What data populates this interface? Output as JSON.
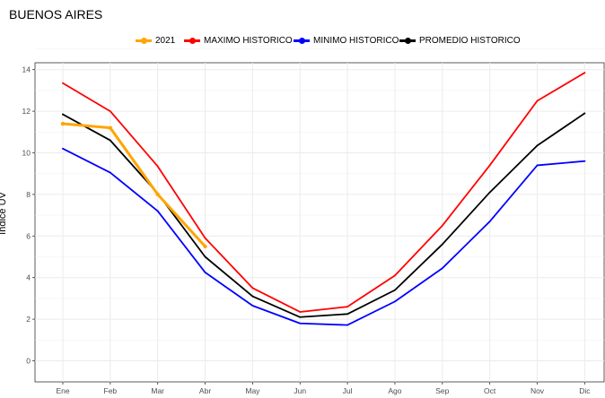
{
  "chart_data": {
    "type": "line",
    "title": "BUENOS AIRES",
    "xlabel": "",
    "ylabel": "Indice UV",
    "categories": [
      "Ene",
      "Feb",
      "Mar",
      "Abr",
      "May",
      "Jun",
      "Jul",
      "Ago",
      "Sep",
      "Oct",
      "Nov",
      "Dic"
    ],
    "ylim": [
      0,
      15
    ],
    "yticks": [
      0,
      2,
      4,
      6,
      8,
      10,
      12,
      14
    ],
    "grid": true,
    "legend_position": "top",
    "series": [
      {
        "name": "2021",
        "color": "#FFA500",
        "values": [
          11.4,
          11.2,
          8.0,
          5.5,
          null,
          null,
          null,
          null,
          null,
          null,
          null,
          null
        ]
      },
      {
        "name": "MAXIMO HISTORICO",
        "color": "#FF0000",
        "values": [
          13.35,
          12.0,
          9.35,
          5.9,
          3.5,
          2.35,
          2.6,
          4.1,
          6.5,
          9.4,
          12.5,
          13.85
        ]
      },
      {
        "name": "MINIMO HISTORICO",
        "color": "#0000FF",
        "values": [
          10.2,
          9.05,
          7.2,
          4.25,
          2.65,
          1.8,
          1.72,
          2.85,
          4.45,
          6.7,
          9.4,
          9.6
        ]
      },
      {
        "name": "PROMEDIO HISTORICO",
        "color": "#000000",
        "values": [
          11.85,
          10.6,
          8.05,
          5.0,
          3.1,
          2.1,
          2.25,
          3.4,
          5.6,
          8.1,
          10.35,
          11.9
        ]
      }
    ]
  }
}
